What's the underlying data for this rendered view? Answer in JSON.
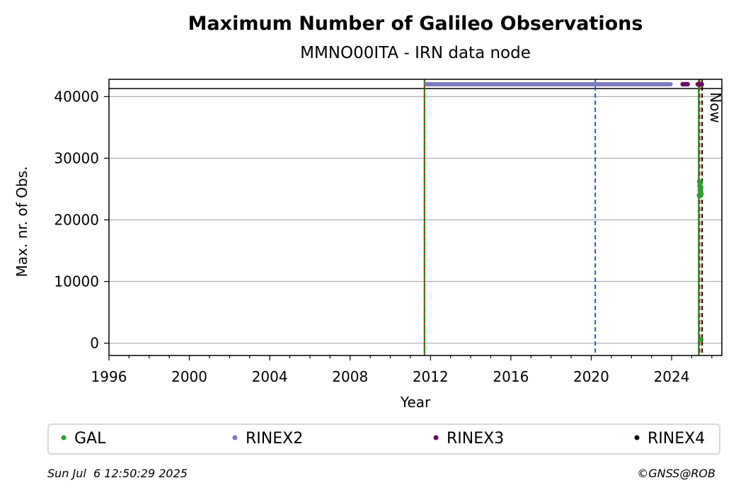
{
  "chart_data": {
    "type": "scatter",
    "title": "Maximum Number of Galileo Observations",
    "subtitle": "MMNO00ITA - IRN data node",
    "xlabel": "Year",
    "ylabel": "Max. nr. of Obs.",
    "xlim": [
      1996,
      2026.5
    ],
    "ylim": [
      -2000,
      42800
    ],
    "xticks": [
      1996,
      2000,
      2004,
      2008,
      2012,
      2016,
      2020,
      2024
    ],
    "yticks": [
      0,
      10000,
      20000,
      30000,
      40000
    ],
    "ytick_labels": [
      "0",
      "10000",
      "20000",
      "30000",
      "40000"
    ],
    "grid": "horizontal",
    "reference_line": 41300,
    "vertical_lines": [
      {
        "x": 2011.7,
        "color": "#008000",
        "style": "solid"
      },
      {
        "x": 2011.7,
        "color": "#d62728",
        "style": "dotted"
      },
      {
        "x": 2020.2,
        "color": "#1f5fbf",
        "style": "dashed"
      },
      {
        "x": 2025.35,
        "color": "#008000",
        "style": "solid"
      },
      {
        "x": 2025.4,
        "color": "#d62728",
        "style": "dashed"
      },
      {
        "x": 2025.52,
        "color": "#000000",
        "style": "dashed"
      }
    ],
    "now_label": "Now",
    "now_x": 2025.52,
    "series": [
      {
        "name": "GAL",
        "color": "#2ca02c",
        "type": "points",
        "x": [
          2025.36,
          2025.37,
          2025.38,
          2025.39,
          2025.4,
          2025.41,
          2025.42,
          2025.43,
          2025.44,
          2025.45,
          2025.46,
          2025.47,
          2025.48,
          2025.49,
          2025.5
        ],
        "y": [
          24000,
          26200,
          23800,
          25500,
          24800,
          25900,
          24300,
          25100,
          23900,
          26000,
          24600,
          25300,
          600,
          24200,
          41900
        ]
      },
      {
        "name": "RINEX2",
        "color": "#7b7bbd",
        "type": "band",
        "x_start": 2011.8,
        "x_end": 2023.95,
        "y": 42000
      },
      {
        "name": "RINEX3",
        "color": "#6a0066",
        "type": "points",
        "x": [
          2024.55,
          2024.6,
          2024.65,
          2024.7,
          2024.75,
          2024.8,
          2025.3,
          2025.35,
          2025.4,
          2025.45,
          2025.5
        ],
        "y": [
          42000,
          42000,
          42000,
          42000,
          42000,
          42000,
          42000,
          42000,
          42000,
          42000,
          42000
        ]
      },
      {
        "name": "RINEX4",
        "color": "#1a0020",
        "type": "points",
        "x": [],
        "y": []
      }
    ],
    "legend": "bottom"
  },
  "footer": {
    "timestamp": "Sun Jul  6 12:50:29 2025",
    "credit": "©GNSS@ROB"
  }
}
